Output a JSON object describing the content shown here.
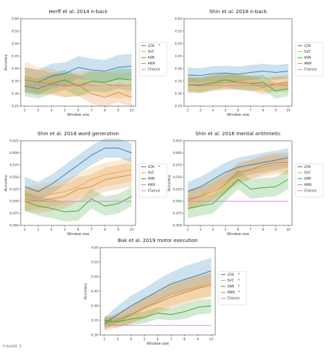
{
  "figure": {
    "caption": "FIGURE 3",
    "colors": {
      "LDA": "#1f77b4",
      "SVC": "#e8a33a",
      "kNN": "#2ca02c",
      "ANN": "#d9822b",
      "Chance": "#d87cd8"
    }
  },
  "chart_data": [
    {
      "type": "line",
      "title": "Herff et al. 2014 n-back",
      "xlabel": "Window size",
      "ylabel": "Accuracy",
      "x": [
        2,
        3,
        4,
        5,
        6,
        7,
        8,
        9,
        10
      ],
      "xlim": [
        1.7,
        10.3
      ],
      "ylim": [
        0.25,
        0.6
      ],
      "yticks": [
        "0.25",
        "0.30",
        "0.35",
        "0.40",
        "0.45",
        "0.50",
        "0.55",
        "0.60"
      ],
      "yticks_values": [
        0.25,
        0.3,
        0.35,
        0.4,
        0.45,
        0.5,
        0.55,
        0.6
      ],
      "legend_position": "right",
      "series": [
        {
          "name": "LDA",
          "marker": "*",
          "values": [
            0.355,
            0.345,
            0.37,
            0.38,
            0.405,
            0.395,
            0.39,
            0.405,
            0.41
          ],
          "spread": [
            0.05,
            0.05,
            0.05,
            0.045,
            0.045,
            0.045,
            0.045,
            0.05,
            0.05
          ]
        },
        {
          "name": "SVC",
          "marker": "",
          "values": [
            0.37,
            0.355,
            0.35,
            0.335,
            0.34,
            0.345,
            0.34,
            0.33,
            0.335
          ],
          "spread": [
            0.06,
            0.05,
            0.05,
            0.05,
            0.05,
            0.05,
            0.05,
            0.05,
            0.05
          ]
        },
        {
          "name": "kNN",
          "marker": "",
          "values": [
            0.33,
            0.32,
            0.34,
            0.355,
            0.33,
            0.35,
            0.345,
            0.36,
            0.355
          ],
          "spread": [
            0.04,
            0.04,
            0.04,
            0.04,
            0.04,
            0.04,
            0.04,
            0.04,
            0.045
          ]
        },
        {
          "name": "ANN",
          "marker": "",
          "values": [
            0.355,
            0.345,
            0.34,
            0.33,
            0.335,
            0.3,
            0.285,
            0.305,
            0.285
          ],
          "spread": [
            0.05,
            0.05,
            0.045,
            0.045,
            0.045,
            0.04,
            0.04,
            0.04,
            0.04
          ]
        },
        {
          "name": "Chance",
          "marker": "",
          "values": [
            0.333,
            0.333,
            0.333,
            0.333,
            0.333,
            0.333,
            0.333,
            0.333,
            0.333
          ]
        }
      ]
    },
    {
      "type": "line",
      "title": "Shin et al. 2018 n-back",
      "xlabel": "Window size",
      "ylabel": "",
      "x": [
        2,
        3,
        4,
        5,
        6,
        7,
        8,
        9,
        10
      ],
      "xlim": [
        1.7,
        10.3
      ],
      "ylim": [
        0.25,
        0.6
      ],
      "yticks": [
        "0.25",
        "0.30",
        "0.35",
        "0.40",
        "0.45",
        "0.50",
        "0.55",
        "0.60"
      ],
      "yticks_values": [
        0.25,
        0.3,
        0.35,
        0.4,
        0.45,
        0.5,
        0.55,
        0.6
      ],
      "legend_position": "right",
      "series": [
        {
          "name": "LDA",
          "marker": "",
          "values": [
            0.375,
            0.372,
            0.38,
            0.382,
            0.378,
            0.385,
            0.39,
            0.385,
            0.39
          ],
          "spread": [
            0.03,
            0.03,
            0.03,
            0.03,
            0.03,
            0.03,
            0.03,
            0.03,
            0.03
          ]
        },
        {
          "name": "SVC",
          "marker": "",
          "values": [
            0.34,
            0.335,
            0.345,
            0.345,
            0.35,
            0.345,
            0.335,
            0.34,
            0.335
          ],
          "spread": [
            0.03,
            0.03,
            0.03,
            0.03,
            0.03,
            0.03,
            0.03,
            0.03,
            0.03
          ]
        },
        {
          "name": "kNN",
          "marker": "",
          "values": [
            0.335,
            0.335,
            0.345,
            0.355,
            0.345,
            0.34,
            0.345,
            0.31,
            0.32
          ],
          "spread": [
            0.03,
            0.03,
            0.03,
            0.03,
            0.03,
            0.03,
            0.03,
            0.03,
            0.03
          ]
        },
        {
          "name": "ANN",
          "marker": "",
          "values": [
            0.335,
            0.33,
            0.34,
            0.345,
            0.345,
            0.34,
            0.325,
            0.34,
            0.345
          ],
          "spread": [
            0.03,
            0.03,
            0.03,
            0.03,
            0.03,
            0.03,
            0.03,
            0.03,
            0.03
          ]
        },
        {
          "name": "Chance",
          "marker": "",
          "values": [
            0.333,
            0.333,
            0.333,
            0.333,
            0.333,
            0.333,
            0.333,
            0.333,
            0.333
          ]
        }
      ]
    },
    {
      "type": "line",
      "title": "Shin et al. 2018 word generation",
      "xlabel": "Window size",
      "ylabel": "Accuracy",
      "x": [
        2,
        3,
        4,
        5,
        6,
        7,
        8,
        9,
        10
      ],
      "xlim": [
        1.7,
        10.3
      ],
      "ylim": [
        0.45,
        0.625
      ],
      "yticks": [
        "0.450",
        "0.475",
        "0.500",
        "0.525",
        "0.550",
        "0.575",
        "0.600",
        "0.625"
      ],
      "yticks_values": [
        0.45,
        0.475,
        0.5,
        0.525,
        0.55,
        0.575,
        0.6,
        0.625
      ],
      "legend_position": "right",
      "series": [
        {
          "name": "LDA",
          "marker": "*",
          "values": [
            0.53,
            0.52,
            0.535,
            0.555,
            0.575,
            0.595,
            0.61,
            0.61,
            0.6
          ],
          "spread": [
            0.02,
            0.02,
            0.02,
            0.02,
            0.02,
            0.02,
            0.02,
            0.02,
            0.02
          ]
        },
        {
          "name": "SVC",
          "marker": "",
          "values": [
            0.505,
            0.51,
            0.515,
            0.52,
            0.53,
            0.545,
            0.555,
            0.56,
            0.565
          ],
          "spread": [
            0.025,
            0.025,
            0.025,
            0.025,
            0.025,
            0.025,
            0.025,
            0.025,
            0.025
          ]
        },
        {
          "name": "kNN",
          "marker": "",
          "values": [
            0.5,
            0.49,
            0.485,
            0.478,
            0.48,
            0.505,
            0.49,
            0.495,
            0.51
          ],
          "spread": [
            0.02,
            0.02,
            0.02,
            0.02,
            0.02,
            0.02,
            0.02,
            0.02,
            0.02
          ]
        },
        {
          "name": "ANN",
          "marker": "",
          "values": [
            0.505,
            0.5,
            0.505,
            0.51,
            0.525,
            0.53,
            0.545,
            0.55,
            0.555
          ],
          "spread": [
            0.025,
            0.025,
            0.025,
            0.025,
            0.025,
            0.025,
            0.025,
            0.025,
            0.025
          ]
        },
        {
          "name": "Chance",
          "marker": "",
          "values": [
            0.5,
            0.5,
            0.5,
            0.5,
            0.5,
            0.5,
            0.5,
            0.5,
            0.5
          ]
        }
      ]
    },
    {
      "type": "line",
      "title": "Shin et al. 2016 mental arithmetic",
      "xlabel": "Window size",
      "ylabel": "Accuracy",
      "x": [
        2,
        3,
        4,
        5,
        6,
        7,
        8,
        9,
        10
      ],
      "xlim": [
        1.7,
        10.3
      ],
      "ylim": [
        0.45,
        0.625
      ],
      "yticks": [
        "0.450",
        "0.475",
        "0.500",
        "0.525",
        "0.550",
        "0.575",
        "0.600",
        "0.625"
      ],
      "yticks_values": [
        0.45,
        0.475,
        0.5,
        0.525,
        0.55,
        0.575,
        0.6,
        0.625
      ],
      "legend_position": "right",
      "series": [
        {
          "name": "LDA",
          "marker": "",
          "values": [
            0.52,
            0.53,
            0.545,
            0.56,
            0.57,
            0.575,
            0.58,
            0.585,
            0.59
          ],
          "spread": [
            0.02,
            0.02,
            0.02,
            0.02,
            0.02,
            0.02,
            0.02,
            0.02,
            0.02
          ]
        },
        {
          "name": "SVC",
          "marker": "",
          "values": [
            0.5,
            0.51,
            0.525,
            0.54,
            0.555,
            0.565,
            0.57,
            0.575,
            0.575
          ],
          "spread": [
            0.02,
            0.02,
            0.02,
            0.02,
            0.02,
            0.02,
            0.02,
            0.02,
            0.02
          ]
        },
        {
          "name": "kNN",
          "marker": "",
          "values": [
            0.485,
            0.49,
            0.495,
            0.52,
            0.545,
            0.525,
            0.528,
            0.53,
            0.545
          ],
          "spread": [
            0.02,
            0.02,
            0.02,
            0.02,
            0.02,
            0.02,
            0.02,
            0.02,
            0.02
          ]
        },
        {
          "name": "ANN",
          "marker": "",
          "values": [
            0.505,
            0.51,
            0.52,
            0.535,
            0.56,
            0.565,
            0.575,
            0.58,
            0.58
          ],
          "spread": [
            0.02,
            0.02,
            0.02,
            0.02,
            0.02,
            0.02,
            0.02,
            0.02,
            0.02
          ]
        },
        {
          "name": "Chance",
          "marker": "",
          "values": [
            0.5,
            0.5,
            0.5,
            0.5,
            0.5,
            0.5,
            0.5,
            0.5,
            0.5
          ]
        }
      ]
    },
    {
      "type": "line",
      "title": "Bak et al. 2019 motor execution",
      "xlabel": "Window size",
      "ylabel": "Accuracy",
      "x": [
        2,
        3,
        4,
        5,
        6,
        7,
        8,
        9,
        10
      ],
      "xlim": [
        1.7,
        10.3
      ],
      "ylim": [
        0.3,
        0.6
      ],
      "yticks": [
        "0.30",
        "0.35",
        "0.40",
        "0.45",
        "0.50",
        "0.55",
        "0.60"
      ],
      "yticks_values": [
        0.3,
        0.35,
        0.4,
        0.45,
        0.5,
        0.55,
        0.6
      ],
      "legend_position": "right",
      "series": [
        {
          "name": "LDA",
          "marker": "*",
          "values": [
            0.34,
            0.37,
            0.4,
            0.425,
            0.45,
            0.475,
            0.49,
            0.505,
            0.52
          ],
          "spread": [
            0.02,
            0.03,
            0.035,
            0.035,
            0.04,
            0.04,
            0.045,
            0.045,
            0.045
          ]
        },
        {
          "name": "SVC",
          "marker": "*",
          "values": [
            0.335,
            0.35,
            0.37,
            0.39,
            0.42,
            0.44,
            0.455,
            0.465,
            0.475
          ],
          "spread": [
            0.02,
            0.025,
            0.03,
            0.035,
            0.035,
            0.04,
            0.04,
            0.04,
            0.04
          ]
        },
        {
          "name": "kNN",
          "marker": "*",
          "values": [
            0.35,
            0.345,
            0.355,
            0.36,
            0.375,
            0.37,
            0.38,
            0.395,
            0.4
          ],
          "spread": [
            0.015,
            0.015,
            0.02,
            0.02,
            0.02,
            0.02,
            0.025,
            0.025,
            0.025
          ]
        },
        {
          "name": "ANN",
          "marker": "*",
          "values": [
            0.34,
            0.35,
            0.37,
            0.395,
            0.41,
            0.43,
            0.445,
            0.46,
            0.47
          ],
          "spread": [
            0.02,
            0.025,
            0.03,
            0.035,
            0.035,
            0.04,
            0.04,
            0.04,
            0.04
          ]
        },
        {
          "name": "Chance",
          "marker": "",
          "values": [
            0.333,
            0.333,
            0.333,
            0.333,
            0.333,
            0.333,
            0.333,
            0.333,
            0.333
          ]
        }
      ]
    }
  ]
}
